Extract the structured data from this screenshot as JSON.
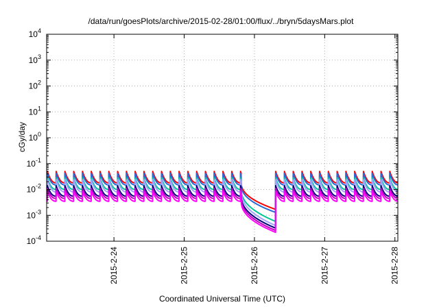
{
  "chart_data": {
    "type": "line",
    "title": "/data/run/goesPlots/archive/2015-02-28/01:00/flux/../bryn/5daysMars.plot",
    "xlabel": "Coordinated Universal Time (UTC)",
    "ylabel": "cGy/day",
    "y_scale": "log",
    "ylim": [
      0.0001,
      10000
    ],
    "y_ticks": [
      {
        "value": 0.0001,
        "base": "10",
        "exp": "-4"
      },
      {
        "value": 0.001,
        "base": "10",
        "exp": "-3"
      },
      {
        "value": 0.01,
        "base": "10",
        "exp": "-2"
      },
      {
        "value": 0.1,
        "base": "10",
        "exp": "-1"
      },
      {
        "value": 1,
        "base": "10",
        "exp": "0"
      },
      {
        "value": 10,
        "base": "10",
        "exp": "1"
      },
      {
        "value": 100,
        "base": "10",
        "exp": "2"
      },
      {
        "value": 1000,
        "base": "10",
        "exp": "3"
      },
      {
        "value": 10000,
        "base": "10",
        "exp": "4"
      }
    ],
    "xlim": [
      "2015-02-23T01:00",
      "2015-02-28T01:00"
    ],
    "x_ticks": [
      {
        "value": "2015-02-24T00:00",
        "label": "2015-2-24"
      },
      {
        "value": "2015-02-25T00:00",
        "label": "2015-2-25"
      },
      {
        "value": "2015-02-26T00:00",
        "label": "2015-2-26"
      },
      {
        "value": "2015-02-27T00:00",
        "label": "2015-2-27"
      },
      {
        "value": "2015-02-28T00:00",
        "label": "2015-2-28"
      }
    ],
    "grid": true,
    "spike_period_hours": 3,
    "dip_start": "2015-02-25T19:30",
    "dip_end": "2015-02-26T07:15",
    "series": [
      {
        "color": "#ff0000",
        "peak": 0.05,
        "base": 0.018,
        "dip_min": 0.0017
      },
      {
        "color": "#2a6ad8",
        "peak": 0.042,
        "base": 0.015,
        "dip_min": 0.0013
      },
      {
        "color": "#00c896",
        "peak": 0.028,
        "base": 0.01,
        "dip_min": 0.00058
      },
      {
        "color": "#a0a0ff",
        "peak": 0.024,
        "base": 0.008,
        "dip_min": 0.0004
      },
      {
        "color": "#000080",
        "peak": 0.014,
        "base": 0.0055,
        "dip_min": 0.00032
      },
      {
        "color": "#c000c0",
        "peak": 0.011,
        "base": 0.0045,
        "dip_min": 0.00026
      },
      {
        "color": "#ff00ff",
        "peak": 0.0085,
        "base": 0.0035,
        "dip_min": 0.00022
      }
    ]
  }
}
